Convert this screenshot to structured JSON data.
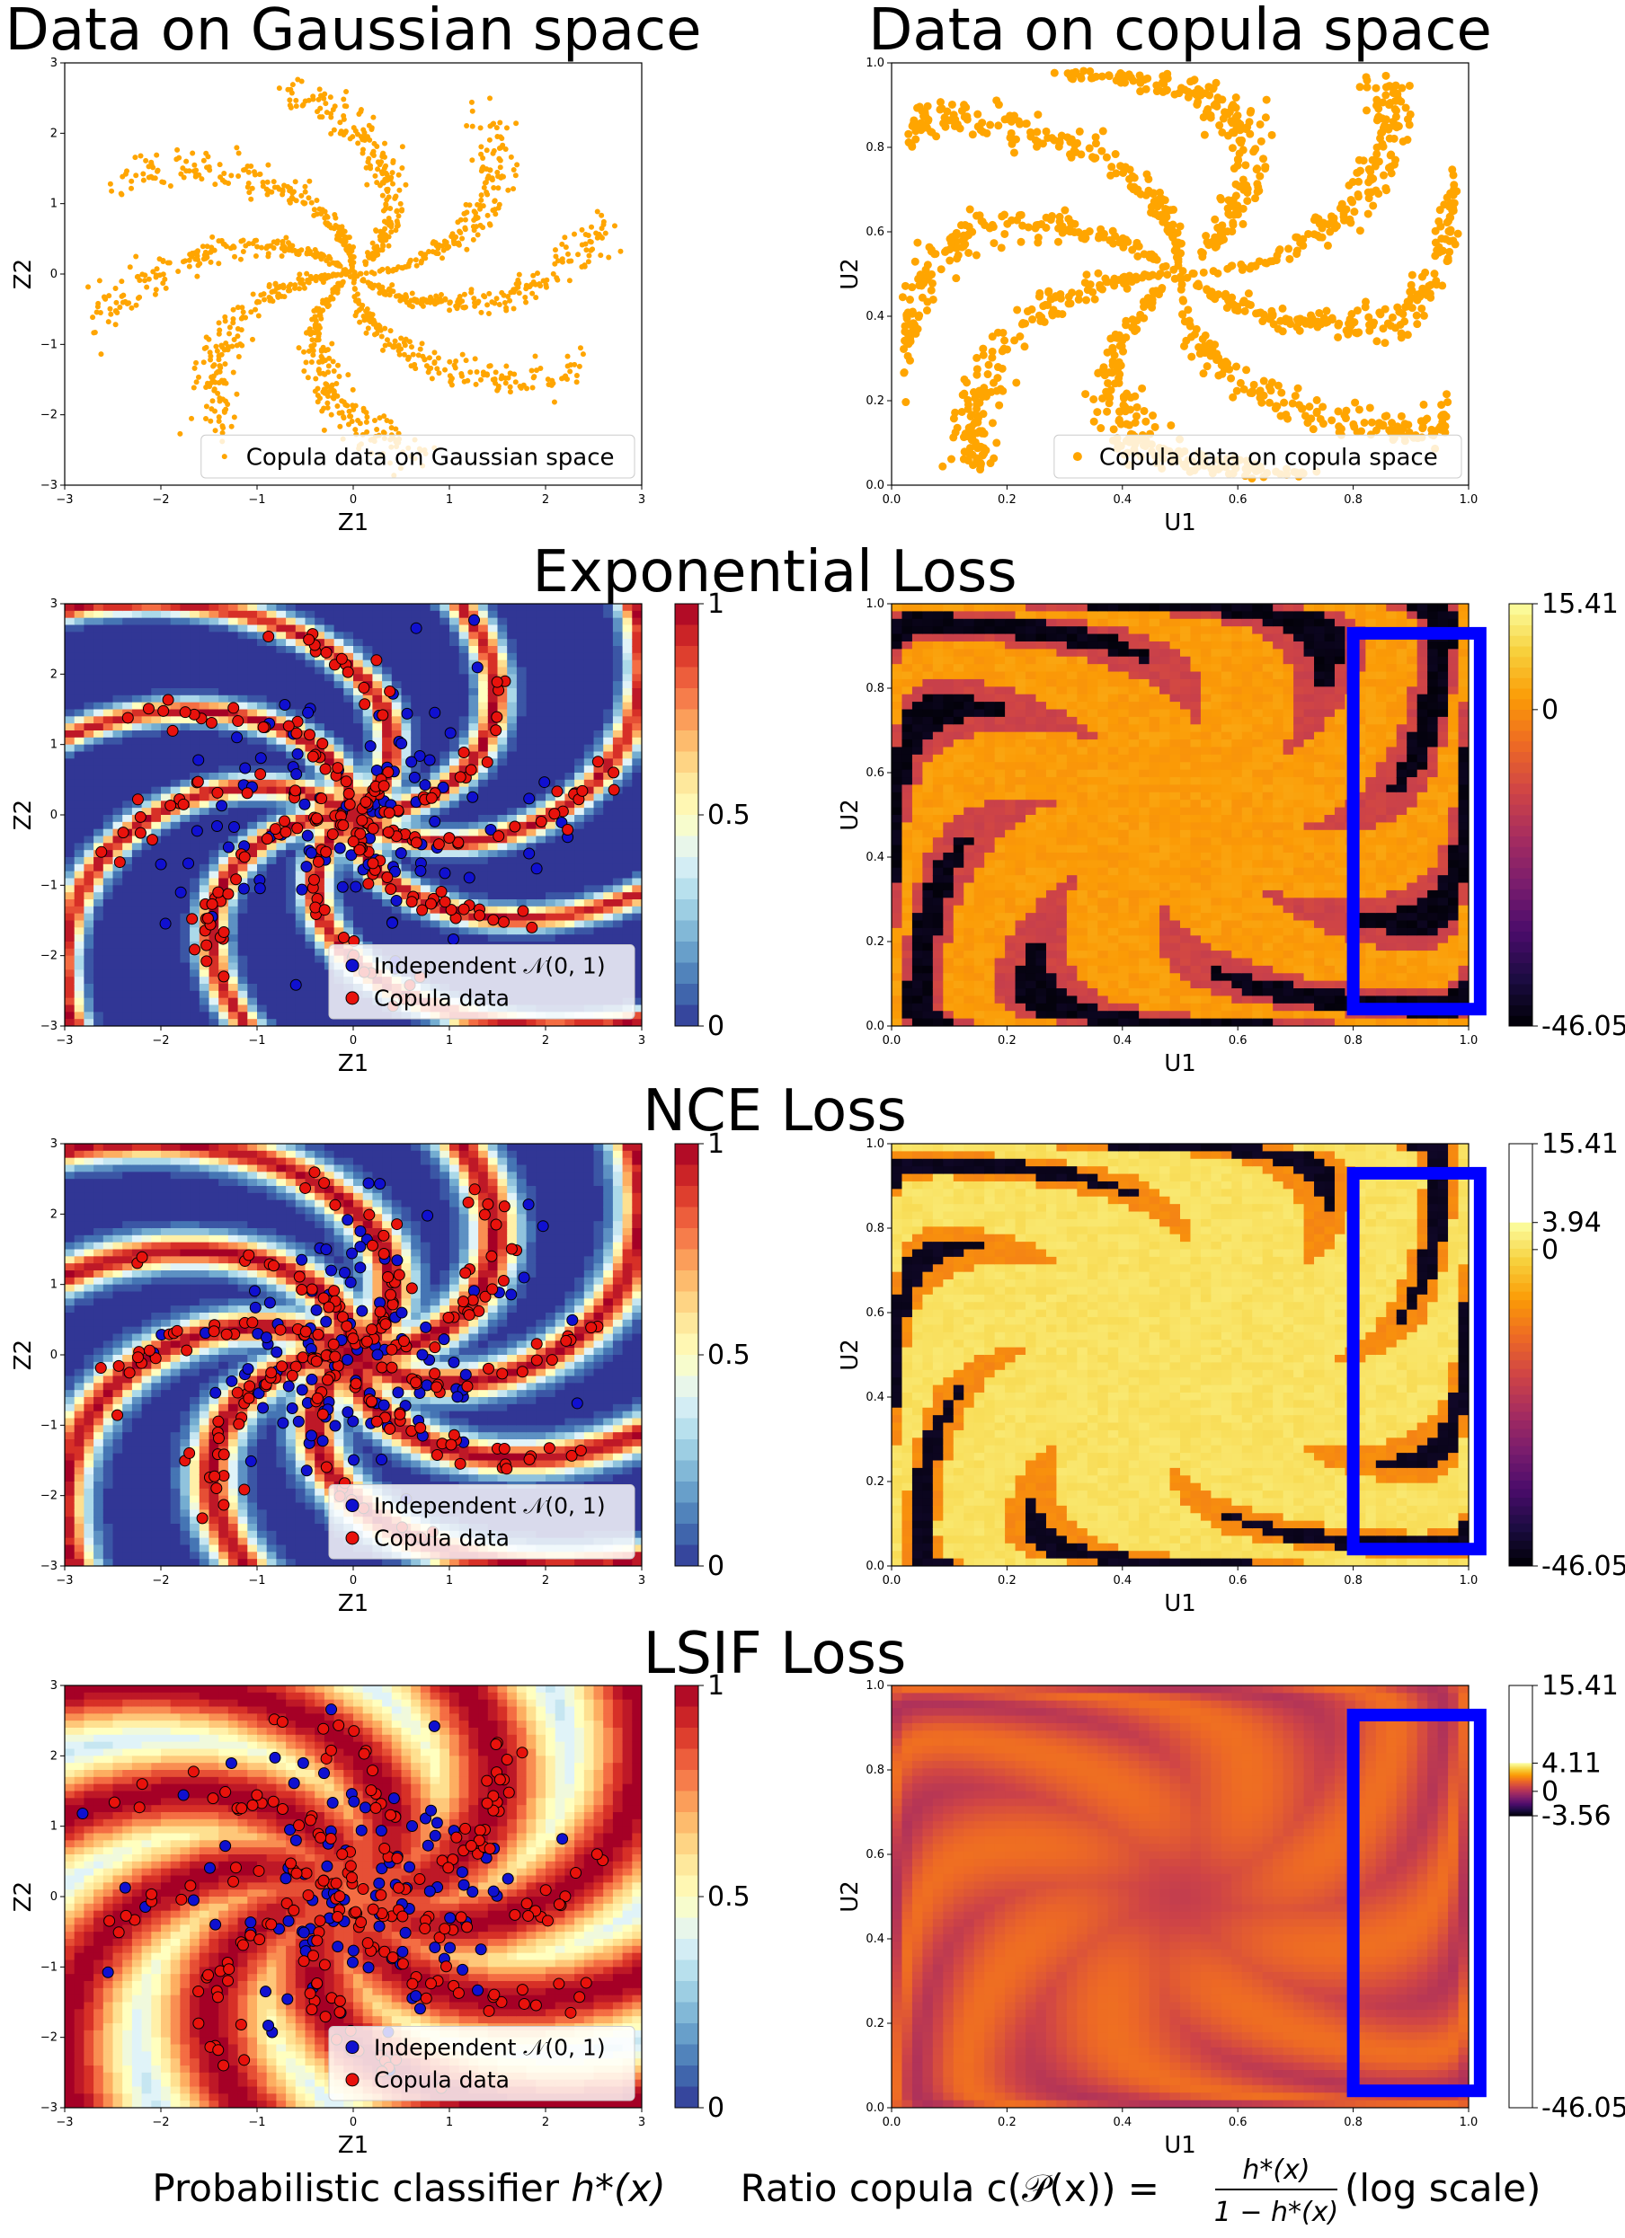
{
  "headings": {
    "row0_left": "Data on Gaussian space",
    "row0_right": "Data on copula space",
    "row1": "Exponential Loss",
    "row2": "NCE Loss",
    "row3": "LSIF Loss"
  },
  "bottom_captions": {
    "left_pre": "Probabilistic classifier ",
    "left_math": "h*(x)",
    "right_pre": "Ratio copula ",
    "right_math_lhs": "c(𝒫(x)) = ",
    "right_num": "h*(x)",
    "right_den": "1 − h*(x)",
    "right_post": " (log scale)"
  },
  "colors": {
    "orange": "#FFA500",
    "red_point": "#E8120C",
    "blue_point": "#1010D0",
    "highlight_box": "#0000FF",
    "rdylbu": [
      "#313695",
      "#4575b4",
      "#74add1",
      "#abd9e9",
      "#e0f3f8",
      "#ffffbf",
      "#fee090",
      "#fdae61",
      "#f46d43",
      "#d73027",
      "#a50026"
    ],
    "inferno": [
      "#000004",
      "#1b0c41",
      "#4a0c6b",
      "#781c6d",
      "#a52c60",
      "#cf4446",
      "#ed6925",
      "#fb9b06",
      "#f7d13d",
      "#fcffa4"
    ]
  },
  "chart_data": [
    {
      "id": "gauss_scatter",
      "type": "scatter",
      "title": "Data on Gaussian space",
      "xlabel": "Z1",
      "ylabel": "Z2",
      "xlim": [
        -3,
        3
      ],
      "ylim": [
        -3,
        3
      ],
      "xticks": [
        "−3",
        "−2",
        "−1",
        "0",
        "1",
        "2",
        "3"
      ],
      "yticks": [
        "−3",
        "−2",
        "−1",
        "0",
        "1",
        "2",
        "3"
      ],
      "legend": {
        "position": "bottom-right",
        "entries": [
          "Copula data on Gaussian space"
        ]
      },
      "series": [
        {
          "name": "Copula data on Gaussian space",
          "color": "#FFA500",
          "pattern": "pinwheel-spiral, 8 arms",
          "approx_points": 1500
        }
      ]
    },
    {
      "id": "copula_scatter",
      "type": "scatter",
      "title": "Data on copula space",
      "xlabel": "U1",
      "ylabel": "U2",
      "xlim": [
        0,
        1
      ],
      "ylim": [
        0,
        1
      ],
      "xticks": [
        "0.0",
        "0.2",
        "0.4",
        "0.6",
        "0.8",
        "1.0"
      ],
      "yticks": [
        "0.0",
        "0.2",
        "0.4",
        "0.6",
        "0.8",
        "1.0"
      ],
      "legend": {
        "position": "bottom-right",
        "entries": [
          "Copula data on copula space"
        ]
      },
      "series": [
        {
          "name": "Copula data on copula space",
          "color": "#FFA500",
          "pattern": "pinwheel arms mapped through normal CDF",
          "approx_points": 1500
        }
      ]
    },
    {
      "id": "exp_classifier",
      "type": "heatmap",
      "loss": "Exponential Loss",
      "xlabel": "Z1",
      "ylabel": "Z2",
      "xlim": [
        -3,
        3
      ],
      "ylim": [
        -3,
        3
      ],
      "xticks": [
        "−3",
        "−2",
        "−1",
        "0",
        "1",
        "2",
        "3"
      ],
      "yticks": [
        "−3",
        "−2",
        "−1",
        "0",
        "1",
        "2",
        "3"
      ],
      "colormap": "RdYlBu_r",
      "sharpness": 9,
      "base": 0.0,
      "colorbar": {
        "min": 0,
        "max": 1,
        "ticks": [
          "0",
          "0.5",
          "1"
        ]
      },
      "legend": {
        "position": "bottom-right",
        "entries": [
          "Independent 𝒩(0, 1)",
          "Copula data"
        ]
      }
    },
    {
      "id": "exp_ratio",
      "type": "heatmap",
      "loss": "Exponential Loss",
      "xlabel": "U1",
      "ylabel": "U2",
      "xlim": [
        0,
        1
      ],
      "ylim": [
        0,
        1
      ],
      "xticks": [
        "0.0",
        "0.2",
        "0.4",
        "0.6",
        "0.8",
        "1.0"
      ],
      "yticks": [
        "0.0",
        "0.2",
        "0.4",
        "0.6",
        "0.8",
        "1.0"
      ],
      "colormap": "inferno",
      "style": "exp",
      "colorbar": {
        "min": -46.05,
        "max": 15.41,
        "ticks": [
          "15.41",
          "0",
          "-46.05"
        ],
        "tick_values": [
          15.41,
          0,
          -46.05
        ]
      },
      "highlight": {
        "x0": 0.8,
        "x1": 1.02,
        "y0": 0.04,
        "y1": 0.93
      }
    },
    {
      "id": "nce_classifier",
      "type": "heatmap",
      "loss": "NCE Loss",
      "xlabel": "Z1",
      "ylabel": "Z2",
      "xlim": [
        -3,
        3
      ],
      "ylim": [
        -3,
        3
      ],
      "xticks": [
        "−3",
        "−2",
        "−1",
        "0",
        "1",
        "2",
        "3"
      ],
      "yticks": [
        "−3",
        "−2",
        "−1",
        "0",
        "1",
        "2",
        "3"
      ],
      "colormap": "RdYlBu_r",
      "sharpness": 6,
      "base": 0.0,
      "colorbar": {
        "min": 0,
        "max": 1,
        "ticks": [
          "0",
          "0.5",
          "1"
        ]
      },
      "legend": {
        "position": "bottom-right",
        "entries": [
          "Independent 𝒩(0, 1)",
          "Copula data"
        ]
      }
    },
    {
      "id": "nce_ratio",
      "type": "heatmap",
      "loss": "NCE Loss",
      "xlabel": "U1",
      "ylabel": "U2",
      "xlim": [
        0,
        1
      ],
      "ylim": [
        0,
        1
      ],
      "xticks": [
        "0.0",
        "0.2",
        "0.4",
        "0.6",
        "0.8",
        "1.0"
      ],
      "yticks": [
        "0.0",
        "0.2",
        "0.4",
        "0.6",
        "0.8",
        "1.0"
      ],
      "colormap": "inferno",
      "style": "nce",
      "colorbar": {
        "min": -46.05,
        "max": 15.41,
        "ticks": [
          "15.41",
          "3.94",
          "0",
          "-46.05"
        ],
        "tick_values": [
          15.41,
          3.94,
          0,
          -46.05
        ],
        "filled_range": [
          -46.05,
          3.94
        ]
      },
      "highlight": {
        "x0": 0.8,
        "x1": 1.02,
        "y0": 0.04,
        "y1": 0.93
      }
    },
    {
      "id": "lsif_classifier",
      "type": "heatmap",
      "loss": "LSIF Loss",
      "xlabel": "Z1",
      "ylabel": "Z2",
      "xlim": [
        -3,
        3
      ],
      "ylim": [
        -3,
        3
      ],
      "xticks": [
        "−3",
        "−2",
        "−1",
        "0",
        "1",
        "2",
        "3"
      ],
      "yticks": [
        "−3",
        "−2",
        "−1",
        "0",
        "1",
        "2",
        "3"
      ],
      "colormap": "RdYlBu_r",
      "sharpness": 1.2,
      "base": 0.25,
      "colorbar": {
        "min": 0,
        "max": 1,
        "ticks": [
          "0",
          "0.5",
          "1"
        ]
      },
      "legend": {
        "position": "bottom-right",
        "entries": [
          "Independent 𝒩(0, 1)",
          "Copula data"
        ]
      }
    },
    {
      "id": "lsif_ratio",
      "type": "heatmap",
      "loss": "LSIF Loss",
      "xlabel": "U1",
      "ylabel": "U2",
      "xlim": [
        0,
        1
      ],
      "ylim": [
        0,
        1
      ],
      "xticks": [
        "0.0",
        "0.2",
        "0.4",
        "0.6",
        "0.8",
        "1.0"
      ],
      "yticks": [
        "0.0",
        "0.2",
        "0.4",
        "0.6",
        "0.8",
        "1.0"
      ],
      "colormap": "inferno",
      "style": "lsif",
      "colorbar": {
        "min": -46.05,
        "max": 15.41,
        "ticks": [
          "15.41",
          "4.11",
          "0",
          "-3.56",
          "-46.05"
        ],
        "tick_values": [
          15.41,
          4.11,
          0,
          -3.56,
          -46.05
        ],
        "filled_range": [
          -3.56,
          4.11
        ]
      },
      "highlight": {
        "x0": 0.8,
        "x1": 1.02,
        "y0": 0.04,
        "y1": 0.93
      }
    }
  ]
}
